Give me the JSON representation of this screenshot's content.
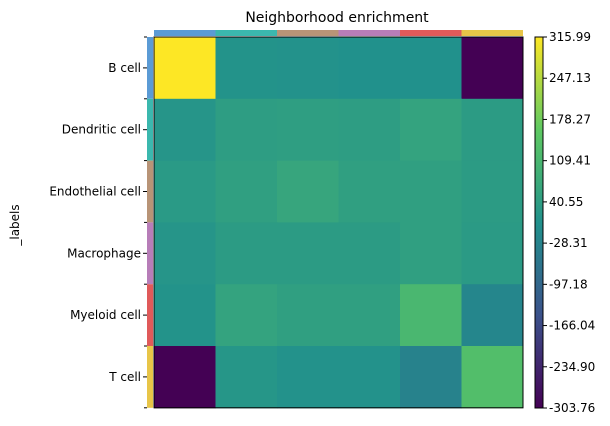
{
  "chart_data": {
    "type": "heatmap",
    "title": "Neighborhood enrichment",
    "ylabel": "_labels",
    "xlabel": "",
    "categories": [
      "B cell",
      "Dendritic cell",
      "Endothelial cell",
      "Macrophage",
      "Myeloid cell",
      "T cell"
    ],
    "category_colors": [
      "#5B9BD5",
      "#3BB8AE",
      "#B89477",
      "#B77DB8",
      "#E05A5A",
      "#E8C548"
    ],
    "values": [
      [
        315.99,
        12.0,
        10.0,
        5.0,
        5.0,
        -303.76
      ],
      [
        18.0,
        40.0,
        42.0,
        40.0,
        55.0,
        35.0
      ],
      [
        30.0,
        45.0,
        62.0,
        45.0,
        45.0,
        35.0
      ],
      [
        18.0,
        35.0,
        35.0,
        35.0,
        45.0,
        32.0
      ],
      [
        12.0,
        55.0,
        45.0,
        45.0,
        110.0,
        -20.0
      ],
      [
        -303.76,
        20.0,
        10.0,
        10.0,
        -30.0,
        130.0
      ]
    ],
    "colorbar": {
      "min": -303.76,
      "max": 315.99,
      "ticks": [
        "315.99",
        "247.13",
        "178.27",
        "109.41",
        "40.55",
        "-28.31",
        "-97.18",
        "-166.04",
        "-234.90",
        "-303.76"
      ]
    },
    "colormap": "viridis"
  }
}
